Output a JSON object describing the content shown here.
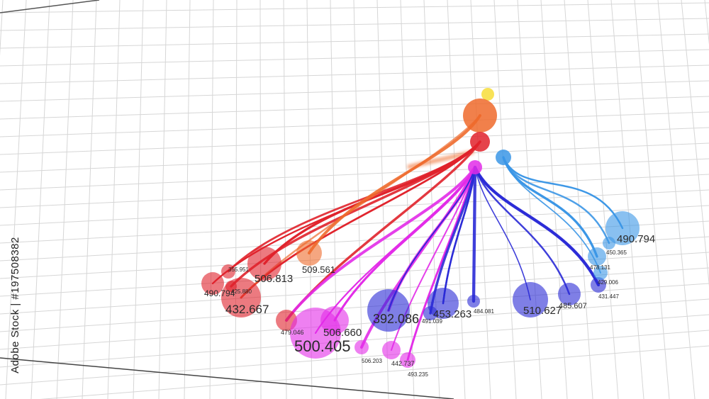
{
  "stock_id": "Adobe Stock | #197508382",
  "palette": {
    "red": "#e0222b",
    "orange": "#ee6a2c",
    "magenta": "#e22be8",
    "blue": "#2a2ad6",
    "lightblue": "#3b96e6",
    "yellow": "#f7dd3a",
    "grid": "#d6d6d6"
  },
  "nodes": [
    {
      "label": "",
      "color": "yellow"
    },
    {
      "label": "",
      "color": "orange"
    },
    {
      "label": "",
      "color": "red"
    },
    {
      "label": "",
      "color": "magenta"
    },
    {
      "label": "",
      "color": "lightblue"
    },
    {
      "label": "490.794",
      "color": "red"
    },
    {
      "label": "355.951",
      "color": "red"
    },
    {
      "label": "425.880",
      "color": "red"
    },
    {
      "label": "432.667",
      "color": "red"
    },
    {
      "label": "506.813",
      "color": "red"
    },
    {
      "label": "509.561",
      "color": "orange"
    },
    {
      "label": "479.046",
      "color": "red"
    },
    {
      "label": "500.405",
      "color": "magenta"
    },
    {
      "label": "506.660",
      "color": "magenta"
    },
    {
      "label": "506.203",
      "color": "magenta"
    },
    {
      "label": "442.737",
      "color": "magenta"
    },
    {
      "label": "493.235",
      "color": "magenta"
    },
    {
      "label": "392.086",
      "color": "blue"
    },
    {
      "label": "453.263",
      "color": "blue"
    },
    {
      "label": "491.039",
      "color": "blue"
    },
    {
      "label": "484.081",
      "color": "blue"
    },
    {
      "label": "510.627",
      "color": "blue"
    },
    {
      "label": "485.607",
      "color": "blue"
    },
    {
      "label": "431.447",
      "color": "blue"
    },
    {
      "label": "490.794",
      "color": "lightblue"
    },
    {
      "label": "450.365",
      "color": "lightblue"
    },
    {
      "label": "478.131",
      "color": "lightblue"
    },
    {
      "label": "429.006",
      "color": "lightblue"
    }
  ]
}
